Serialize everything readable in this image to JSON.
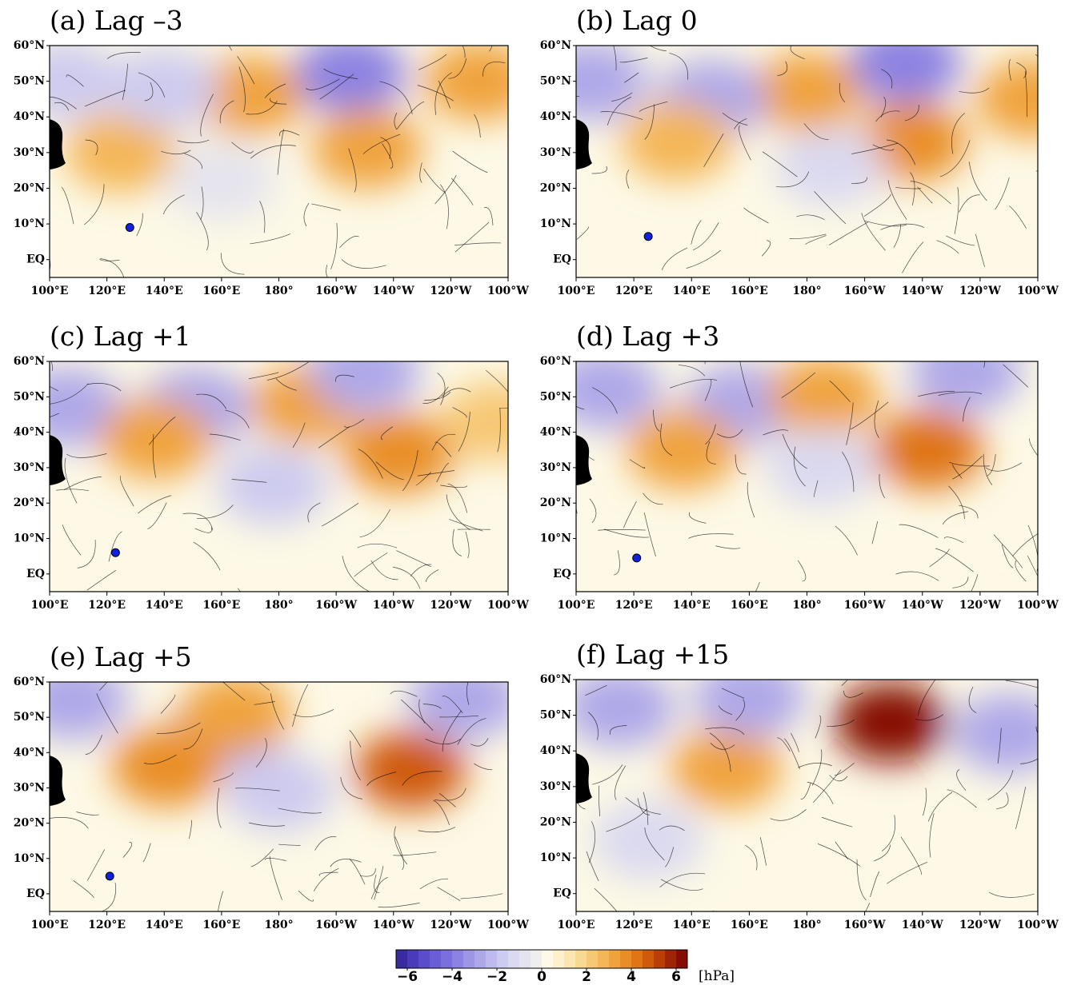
{
  "lon_range": [
    100,
    260
  ],
  "lat_range": [
    -5,
    60
  ],
  "lon_ticks": [
    {
      "value": 100,
      "label": "100°E"
    },
    {
      "value": 120,
      "label": "120°E"
    },
    {
      "value": 140,
      "label": "140°E"
    },
    {
      "value": 160,
      "label": "160°E"
    },
    {
      "value": 180,
      "label": "180°"
    },
    {
      "value": 200,
      "label": "160°W"
    },
    {
      "value": 220,
      "label": "140°W"
    },
    {
      "value": 240,
      "label": "120°W"
    },
    {
      "value": 260,
      "label": "100°W"
    }
  ],
  "lat_ticks": [
    {
      "value": 60,
      "label": "60°N"
    },
    {
      "value": 50,
      "label": "50°N"
    },
    {
      "value": 40,
      "label": "40°N"
    },
    {
      "value": 30,
      "label": "30°N"
    },
    {
      "value": 20,
      "label": "20°N"
    },
    {
      "value": 10,
      "label": "10°N"
    },
    {
      "value": 0,
      "label": "EQ"
    }
  ],
  "panels": [
    {
      "title": "(a) Lag –3",
      "marker": {
        "lon": 128,
        "lat": 9
      },
      "centers": [
        {
          "lon": 170,
          "lat": 46,
          "value": 3
        },
        {
          "lon": 205,
          "lat": 52,
          "value": -4
        },
        {
          "lon": 211,
          "lat": 31,
          "value": 3
        },
        {
          "lon": 125,
          "lat": 30,
          "value": 2.5
        },
        {
          "lon": 140,
          "lat": 48,
          "value": -2
        },
        {
          "lon": 250,
          "lat": 50,
          "value": 3
        },
        {
          "lon": 105,
          "lat": 50,
          "value": -2
        },
        {
          "lon": 160,
          "lat": 22,
          "value": -1
        }
      ]
    },
    {
      "title": "(b) Lag 0",
      "marker": {
        "lon": 125,
        "lat": 6.5
      },
      "centers": [
        {
          "lon": 180,
          "lat": 47,
          "value": 3
        },
        {
          "lon": 214,
          "lat": 55,
          "value": -4
        },
        {
          "lon": 147,
          "lat": 45,
          "value": -3
        },
        {
          "lon": 216,
          "lat": 33,
          "value": 3.5
        },
        {
          "lon": 135,
          "lat": 33,
          "value": 2.5
        },
        {
          "lon": 105,
          "lat": 50,
          "value": -3
        },
        {
          "lon": 258,
          "lat": 45,
          "value": 3
        },
        {
          "lon": 188,
          "lat": 26,
          "value": -1.5
        }
      ]
    },
    {
      "title": "(c) Lag +1",
      "marker": {
        "lon": 123,
        "lat": 6
      },
      "centers": [
        {
          "lon": 106,
          "lat": 47,
          "value": -3
        },
        {
          "lon": 151,
          "lat": 47,
          "value": -3
        },
        {
          "lon": 137,
          "lat": 38,
          "value": 3
        },
        {
          "lon": 190,
          "lat": 48,
          "value": 3
        },
        {
          "lon": 222,
          "lat": 34,
          "value": 3.5
        },
        {
          "lon": 178,
          "lat": 25,
          "value": -2
        },
        {
          "lon": 210,
          "lat": 57,
          "value": -3
        },
        {
          "lon": 256,
          "lat": 43,
          "value": 2
        }
      ]
    },
    {
      "title": "(d) Lag +3",
      "marker": {
        "lon": 121,
        "lat": 4.5
      },
      "centers": [
        {
          "lon": 110,
          "lat": 52,
          "value": -3
        },
        {
          "lon": 157,
          "lat": 48,
          "value": -3
        },
        {
          "lon": 137,
          "lat": 35,
          "value": 3
        },
        {
          "lon": 186,
          "lat": 50,
          "value": 3
        },
        {
          "lon": 222,
          "lat": 35,
          "value": 4
        },
        {
          "lon": 235,
          "lat": 57,
          "value": -3
        },
        {
          "lon": 185,
          "lat": 30,
          "value": -1.5
        }
      ]
    },
    {
      "title": "(e) Lag +5",
      "marker": {
        "lon": 121,
        "lat": 5
      },
      "centers": [
        {
          "lon": 163,
          "lat": 48,
          "value": -4
        },
        {
          "lon": 141,
          "lat": 36,
          "value": 3.5
        },
        {
          "lon": 165,
          "lat": 51,
          "value": 3
        },
        {
          "lon": 226,
          "lat": 35,
          "value": 4.5
        },
        {
          "lon": 245,
          "lat": 55,
          "value": -3
        },
        {
          "lon": 108,
          "lat": 55,
          "value": -3
        },
        {
          "lon": 180,
          "lat": 29,
          "value": -2
        }
      ]
    },
    {
      "title": "(f) Lag +15",
      "centers": [
        {
          "lon": 209,
          "lat": 48,
          "value": 6
        },
        {
          "lon": 152,
          "lat": 35,
          "value": 3
        },
        {
          "lon": 115,
          "lat": 52,
          "value": -3
        },
        {
          "lon": 160,
          "lat": 55,
          "value": -3
        },
        {
          "lon": 250,
          "lat": 45,
          "value": -3
        },
        {
          "lon": 125,
          "lat": 15,
          "value": -1.5
        }
      ]
    }
  ],
  "colorbar": {
    "range": [
      -6.5,
      6.5
    ],
    "unit": "[hPa]",
    "ticks": [
      {
        "value": -6,
        "label": "−6"
      },
      {
        "value": -4,
        "label": "−4"
      },
      {
        "value": -2,
        "label": "−2"
      },
      0,
      2,
      4,
      6
    ],
    "colors": [
      "#3a2aa0",
      "#4a3cb8",
      "#5a4ccb",
      "#6a5dd6",
      "#7b6fdd",
      "#8c82e2",
      "#9d95e6",
      "#aea8e9",
      "#bebbec",
      "#cdcbef",
      "#dad9f0",
      "#e5e4ee",
      "#efeeec",
      "#fdf9e6",
      "#fcf1cc",
      "#fbe6b0",
      "#f9d892",
      "#f7c874",
      "#f4b656",
      "#f0a33c",
      "#e98e26",
      "#df7514",
      "#cf5a0c",
      "#b93e08",
      "#a02406",
      "#850e04"
    ]
  }
}
